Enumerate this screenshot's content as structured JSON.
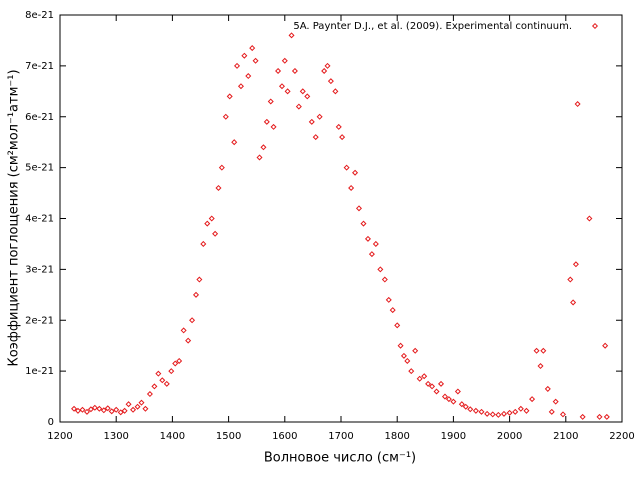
{
  "chart_data": {
    "type": "scatter",
    "x_label": "Волновое число (см⁻¹)",
    "y_label": "Коэффициент поглощения (см²мол⁻¹атм⁻¹)",
    "legend": "upper right",
    "series": [
      {
        "name": "5A. Paynter D.J., et al. (2009). Experimental continuum.",
        "color": "#e41a1c",
        "x": [
          1225,
          1232,
          1240,
          1248,
          1255,
          1262,
          1270,
          1278,
          1285,
          1292,
          1300,
          1308,
          1315,
          1322,
          1330,
          1338,
          1345,
          1352,
          1360,
          1368,
          1375,
          1382,
          1390,
          1398,
          1405,
          1412,
          1420,
          1428,
          1435,
          1442,
          1448,
          1455,
          1462,
          1470,
          1476,
          1482,
          1488,
          1495,
          1502,
          1510,
          1515,
          1522,
          1528,
          1535,
          1542,
          1548,
          1555,
          1562,
          1568,
          1575,
          1580,
          1588,
          1595,
          1600,
          1605,
          1612,
          1618,
          1625,
          1632,
          1640,
          1648,
          1655,
          1662,
          1670,
          1676,
          1682,
          1690,
          1696,
          1702,
          1710,
          1718,
          1725,
          1732,
          1740,
          1748,
          1755,
          1762,
          1770,
          1778,
          1785,
          1792,
          1800,
          1806,
          1812,
          1818,
          1825,
          1832,
          1840,
          1848,
          1855,
          1862,
          1870,
          1878,
          1885,
          1892,
          1900,
          1908,
          1915,
          1922,
          1930,
          1940,
          1950,
          1960,
          1970,
          1980,
          1990,
          2000,
          2010,
          2020,
          2030,
          2040,
          2048,
          2055,
          2060,
          2068,
          2075,
          2082,
          2095,
          2108,
          2113,
          2118,
          2121,
          2130,
          2142,
          2160,
          2170,
          2173
        ],
        "values": [
          2.6e-22,
          2.2e-22,
          2.4e-22,
          2e-22,
          2.5e-22,
          2.8e-22,
          2.6e-22,
          2.3e-22,
          2.7e-22,
          2.1e-22,
          2.4e-22,
          1.9e-22,
          2.2e-22,
          3.5e-22,
          2.4e-22,
          3e-22,
          3.8e-22,
          2.6e-22,
          5.5e-22,
          7e-22,
          9.5e-22,
          8.2e-22,
          7.5e-22,
          1e-21,
          1.15e-21,
          1.2e-21,
          1.8e-21,
          1.6e-21,
          2e-21,
          2.5e-21,
          2.8e-21,
          3.5e-21,
          3.9e-21,
          4e-21,
          3.7e-21,
          4.6e-21,
          5e-21,
          6e-21,
          6.4e-21,
          5.5e-21,
          7e-21,
          6.6e-21,
          7.2e-21,
          6.8e-21,
          7.35e-21,
          7.1e-21,
          5.2e-21,
          5.4e-21,
          5.9e-21,
          6.3e-21,
          5.8e-21,
          6.9e-21,
          6.6e-21,
          7.1e-21,
          6.5e-21,
          7.6e-21,
          6.9e-21,
          6.2e-21,
          6.5e-21,
          6.4e-21,
          5.9e-21,
          5.6e-21,
          6e-21,
          6.9e-21,
          7e-21,
          6.7e-21,
          6.5e-21,
          5.8e-21,
          5.6e-21,
          5e-21,
          4.6e-21,
          4.9e-21,
          4.2e-21,
          3.9e-21,
          3.6e-21,
          3.3e-21,
          3.5e-21,
          3e-21,
          2.8e-21,
          2.4e-21,
          2.2e-21,
          1.9e-21,
          1.5e-21,
          1.3e-21,
          1.2e-21,
          1e-21,
          1.4e-21,
          8.5e-22,
          9e-22,
          7.5e-22,
          7e-22,
          6e-22,
          7.5e-22,
          5e-22,
          4.5e-22,
          4e-22,
          6e-22,
          3.5e-22,
          3e-22,
          2.5e-22,
          2.2e-22,
          2e-22,
          1.6e-22,
          1.5e-22,
          1.4e-22,
          1.6e-22,
          1.8e-22,
          2e-22,
          2.6e-22,
          2.2e-22,
          4.5e-22,
          1.4e-21,
          1.1e-21,
          1.4e-21,
          6.5e-22,
          2e-22,
          4e-22,
          1.5e-22,
          2.8e-21,
          2.35e-21,
          3.1e-21,
          6.25e-21,
          1e-22,
          4e-21,
          1e-22,
          1.5e-21,
          1e-22
        ]
      }
    ],
    "xlim": [
      1200,
      2200
    ],
    "xticks": [
      1200,
      1300,
      1400,
      1500,
      1600,
      1700,
      1800,
      1900,
      2000,
      2100,
      2200
    ],
    "ylim": [
      0,
      8e-21
    ],
    "yticks": [
      0,
      1e-21,
      2e-21,
      3e-21,
      4e-21,
      5e-21,
      6e-21,
      7e-21,
      8e-21
    ]
  }
}
